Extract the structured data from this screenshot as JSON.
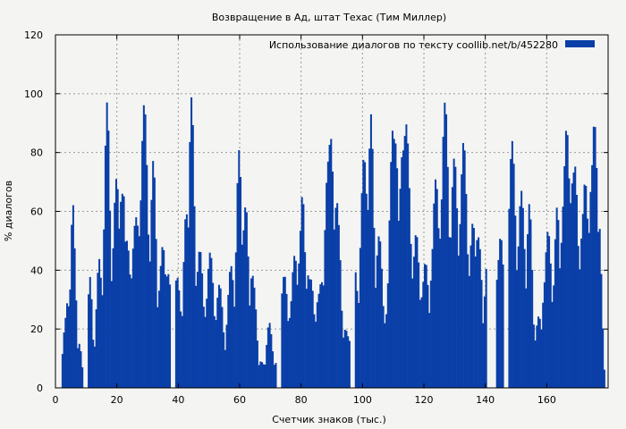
{
  "chart_data": {
    "type": "bar",
    "title": "Возвращение в Ад, штат Техас (Тим Миллер)",
    "xlabel": "Счетчик знаков (тыс.)",
    "ylabel": "% диалогов",
    "xlim": [
      0,
      180
    ],
    "ylim": [
      0,
      120
    ],
    "x_ticks": [
      0,
      20,
      40,
      60,
      80,
      100,
      120,
      140,
      160
    ],
    "y_ticks": [
      0,
      20,
      40,
      60,
      80,
      100,
      120
    ],
    "grid": true,
    "legend_position": "top-right",
    "bar_color": "#0a3fa8",
    "series": [
      {
        "name": "Использование диалогов по тексту  coollib.net/b/452280",
        "x_step": 0.5,
        "x_start": 2,
        "peaks": [
          [
            3.5,
            32,
            1.5
          ],
          [
            5.5,
            67,
            1.2
          ],
          [
            7.5,
            15,
            1.2
          ],
          [
            11,
            38,
            1.2
          ],
          [
            14,
            44,
            1.5
          ],
          [
            16.5,
            98,
            1.5
          ],
          [
            19.5,
            72,
            2.0
          ],
          [
            21.5,
            79,
            1.5
          ],
          [
            23,
            50,
            2.5
          ],
          [
            26,
            58,
            3.0
          ],
          [
            28.5,
            99,
            2.0
          ],
          [
            31.5,
            80,
            1.5
          ],
          [
            34.5,
            50,
            2.0
          ],
          [
            36.5,
            45,
            1.5
          ],
          [
            39.5,
            43,
            1.5
          ],
          [
            42.5,
            67,
            1.5
          ],
          [
            44,
            100,
            1.5
          ],
          [
            46.5,
            50,
            2.0
          ],
          [
            50,
            47,
            2.0
          ],
          [
            53,
            36,
            2.0
          ],
          [
            57,
            42,
            2.0
          ],
          [
            59.5,
            81,
            1.5
          ],
          [
            61.5,
            70,
            1.5
          ],
          [
            64,
            44,
            1.5
          ],
          [
            67,
            10,
            2.0
          ],
          [
            69.5,
            23,
            1.5
          ],
          [
            74,
            41,
            2.0
          ],
          [
            77.5,
            46,
            2.0
          ],
          [
            80,
            72,
            1.5
          ],
          [
            82.5,
            44,
            2.0
          ],
          [
            86,
            40,
            2.0
          ],
          [
            89,
            95,
            2.0
          ],
          [
            91.5,
            72,
            1.5
          ],
          [
            94.5,
            22,
            2.0
          ],
          [
            97.5,
            44,
            1.5
          ],
          [
            100.5,
            85,
            2.0
          ],
          [
            102.5,
            93,
            1.5
          ],
          [
            105,
            53,
            2.0
          ],
          [
            107.5,
            28,
            2.0
          ],
          [
            110,
            100,
            2.0
          ],
          [
            113.5,
            98,
            2.5
          ],
          [
            117,
            55,
            2.0
          ],
          [
            120,
            45,
            2.0
          ],
          [
            123.5,
            72,
            2.0
          ],
          [
            126.5,
            99,
            2.0
          ],
          [
            129.5,
            80,
            2.0
          ],
          [
            132.5,
            86,
            2.0
          ],
          [
            135.5,
            58,
            2.0
          ],
          [
            137.5,
            60,
            1.5
          ],
          [
            141,
            55,
            2.0
          ],
          [
            144.5,
            54,
            2.0
          ],
          [
            148.5,
            84,
            2.0
          ],
          [
            151.5,
            67,
            2.0
          ],
          [
            154,
            64,
            1.5
          ],
          [
            157,
            25,
            2.0
          ],
          [
            160,
            55,
            2.0
          ],
          [
            163,
            64,
            1.5
          ],
          [
            166,
            92,
            2.0
          ],
          [
            168.5,
            85,
            2.0
          ],
          [
            172,
            74,
            2.0
          ],
          [
            175,
            96,
            2.0
          ],
          [
            177,
            60,
            1.0
          ]
        ],
        "floor": 3,
        "gaps": [
          [
            9,
            10
          ],
          [
            37.5,
            38.5
          ],
          [
            72,
            73
          ],
          [
            96,
            97
          ],
          [
            140.5,
            143
          ],
          [
            146,
            147
          ]
        ]
      }
    ]
  }
}
